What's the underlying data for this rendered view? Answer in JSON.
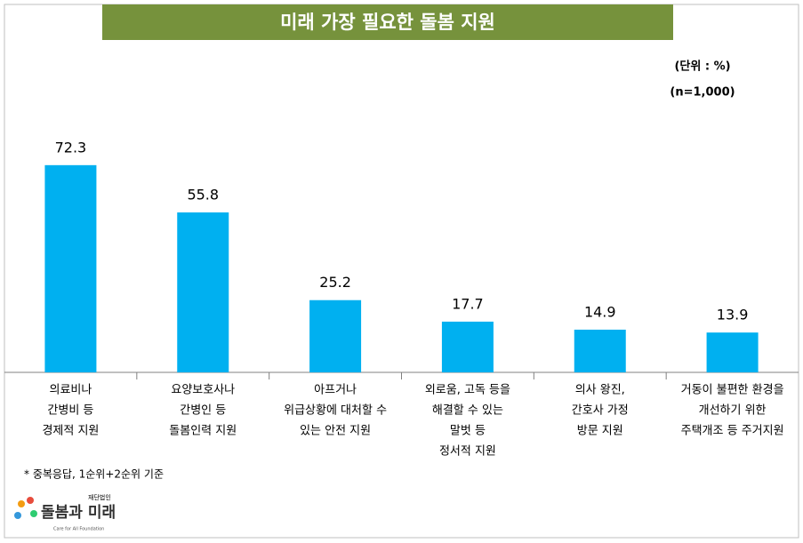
{
  "chart_data": {
    "type": "bar",
    "title": "미래 가장 필요한 돌봄 지원",
    "unit": "(단위 : %)",
    "sample": "(n=1,000)",
    "categories": [
      [
        "의료비나",
        "간병비 등",
        "경제적 지원"
      ],
      [
        "요양보호사나",
        "간병인 등",
        "돌봄인력 지원"
      ],
      [
        "아프거나",
        "위급상황에 대처할 수",
        "있는 안전 지원"
      ],
      [
        "외로움, 고독 등을",
        "해결할 수 있는",
        "말벗 등",
        "정서적 지원"
      ],
      [
        "의사 왕진,",
        "간호사 가정",
        "방문 지원"
      ],
      [
        "거동이 불편한 환경을",
        "개선하기 위한",
        "주택개조 등 주거지원"
      ]
    ],
    "values": [
      72.3,
      55.8,
      25.2,
      17.7,
      14.9,
      13.9
    ],
    "color": "#00b0f0",
    "ylim": [
      0,
      80
    ],
    "footnote": "* 중복응답, 1순위+2순위 기준"
  },
  "logo": {
    "org": "재단법인",
    "name": "돌봄과 미래",
    "english": "Care for All Foundation"
  }
}
